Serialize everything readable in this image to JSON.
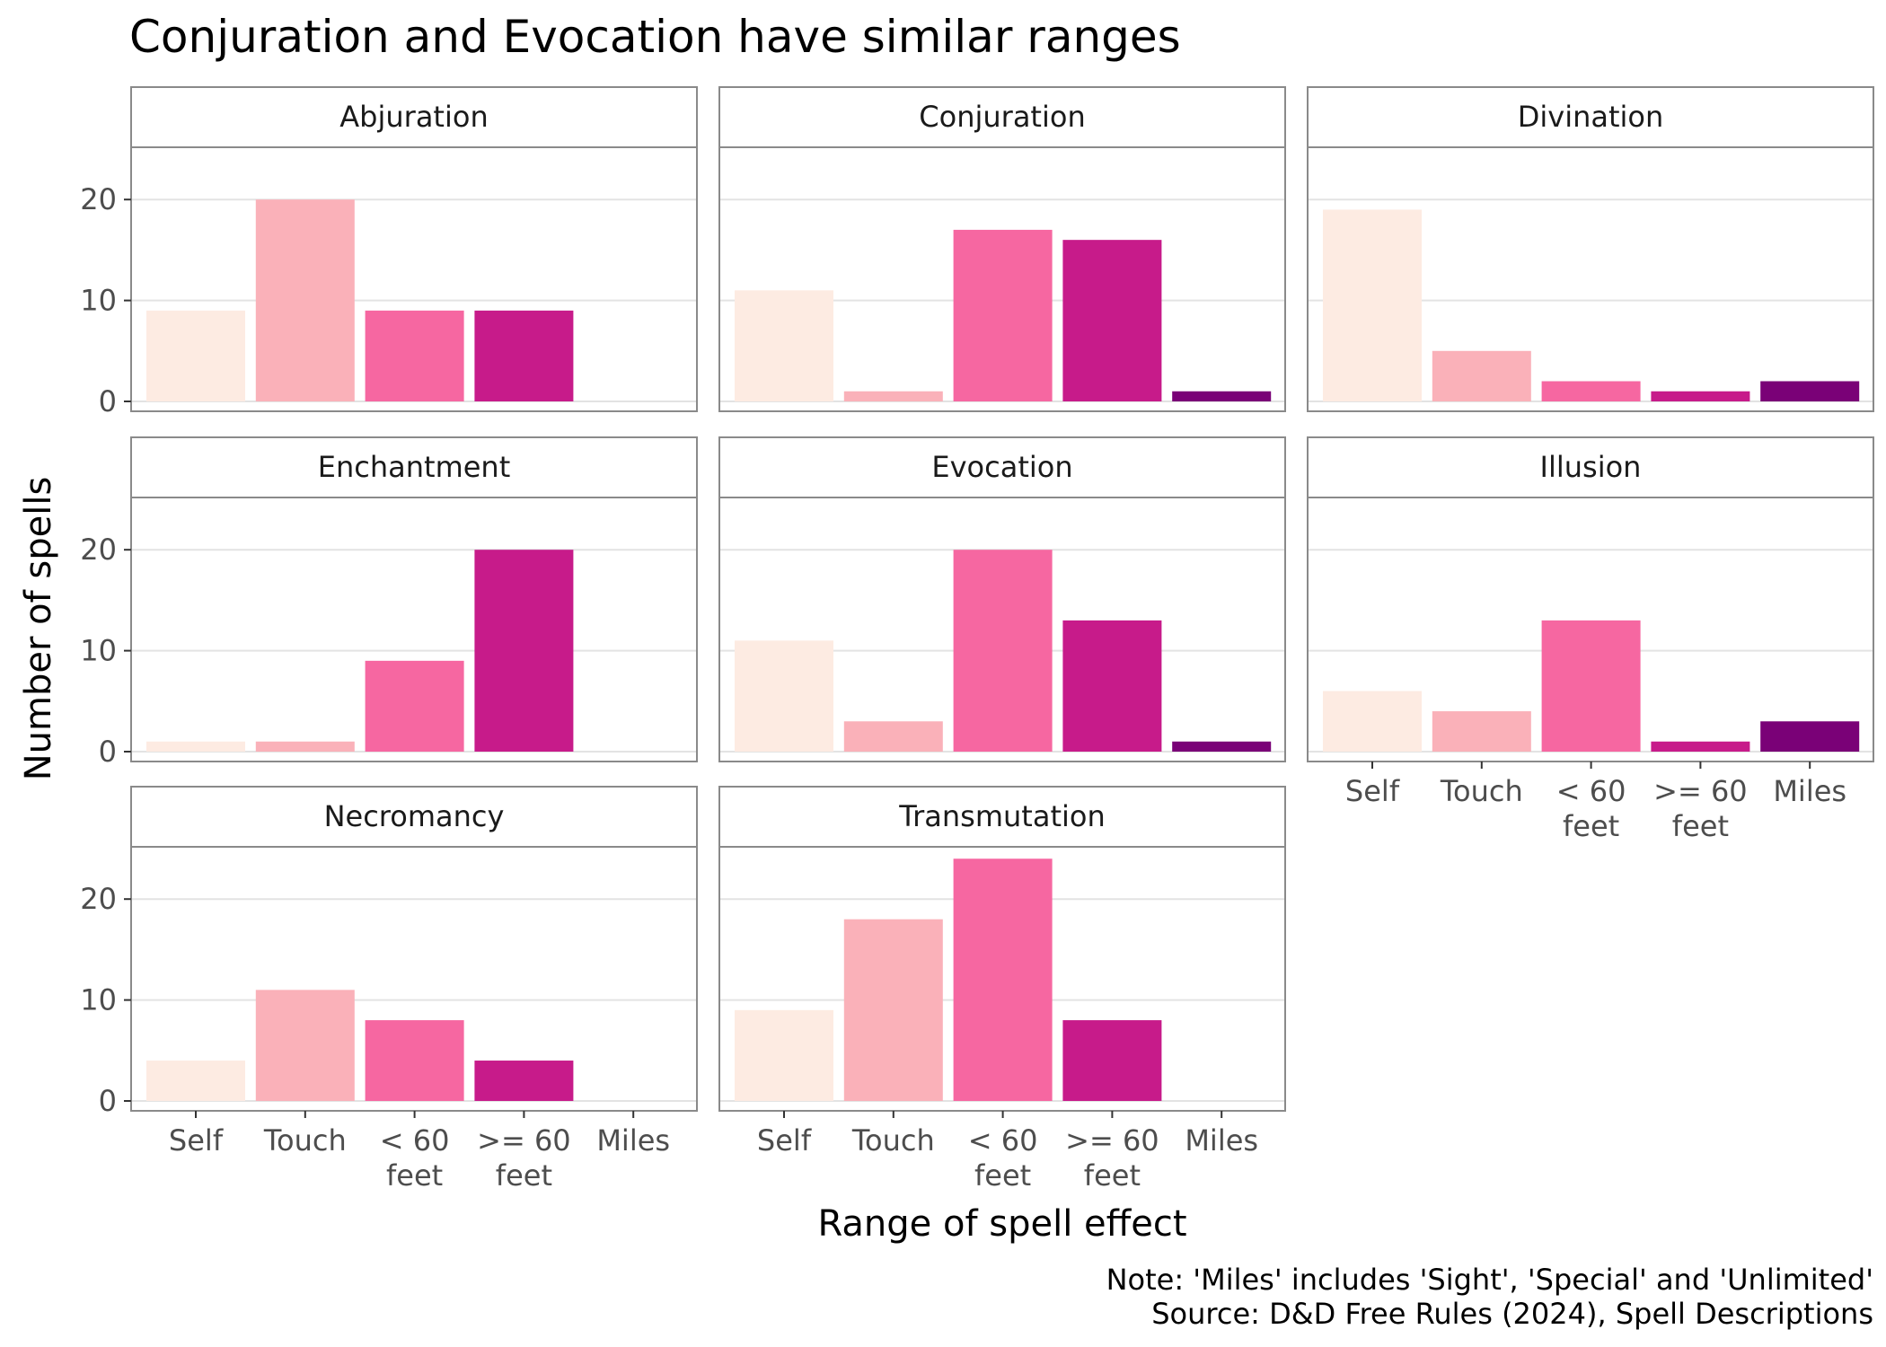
{
  "chart_data": {
    "type": "bar",
    "title": "Conjuration and Evocation have similar ranges",
    "xlabel": "Range of spell effect",
    "ylabel": "Number of spells",
    "categories": [
      "Self",
      "Touch",
      "< 60 feet",
      ">= 60 feet",
      "Miles"
    ],
    "category_tick_lines": [
      [
        "Self"
      ],
      [
        "Touch"
      ],
      [
        "< 60",
        "feet"
      ],
      [
        ">= 60",
        "feet"
      ],
      [
        "Miles"
      ]
    ],
    "category_colors": [
      "#fdebe2",
      "#fab1b9",
      "#f667a1",
      "#c71b8a",
      "#7a0177"
    ],
    "ylim": [
      0,
      25
    ],
    "yticks": [
      0,
      10,
      20
    ],
    "grid": true,
    "facets": [
      {
        "name": "Abjuration",
        "values": [
          9,
          20,
          9,
          9,
          0
        ]
      },
      {
        "name": "Conjuration",
        "values": [
          11,
          1,
          17,
          16,
          1
        ]
      },
      {
        "name": "Divination",
        "values": [
          19,
          5,
          2,
          1,
          2
        ]
      },
      {
        "name": "Enchantment",
        "values": [
          1,
          1,
          9,
          20,
          0
        ]
      },
      {
        "name": "Evocation",
        "values": [
          11,
          3,
          20,
          13,
          1
        ]
      },
      {
        "name": "Illusion",
        "values": [
          6,
          4,
          13,
          1,
          3
        ]
      },
      {
        "name": "Necromancy",
        "values": [
          4,
          11,
          8,
          4,
          0
        ]
      },
      {
        "name": "Transmutation",
        "values": [
          9,
          18,
          24,
          8,
          0
        ]
      }
    ],
    "caption": [
      "Note: 'Miles' includes 'Sight', 'Special' and 'Unlimited'",
      "Source: D&D Free Rules (2024), Spell Descriptions"
    ]
  }
}
